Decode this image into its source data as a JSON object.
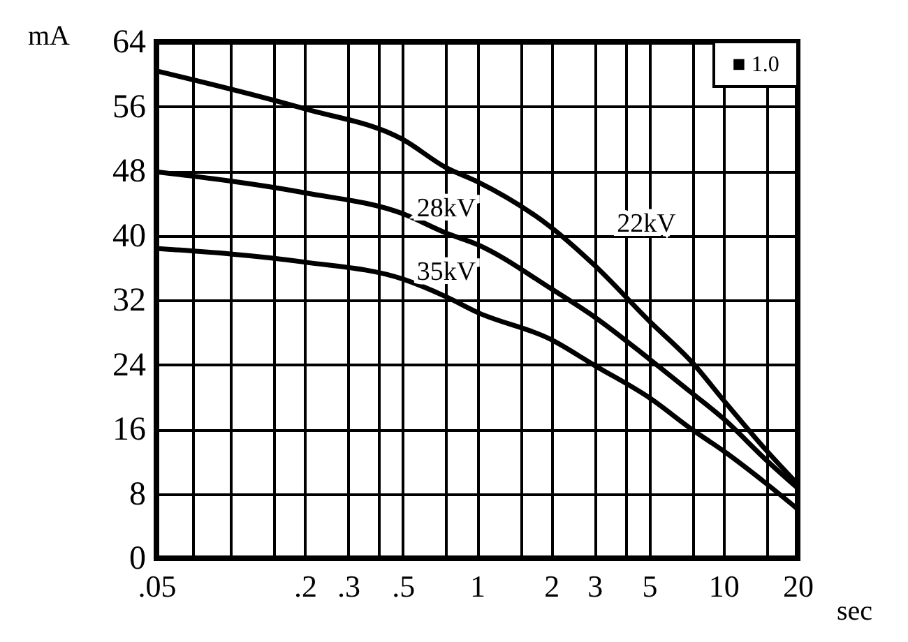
{
  "chart_data": {
    "type": "line",
    "xlabel": "sec",
    "ylabel": "mA",
    "log": "x",
    "grid": true,
    "line_style": "solid",
    "x": [
      0.05,
      0.2,
      0.5,
      0.75,
      1,
      2,
      3,
      5,
      7.5,
      10,
      15,
      20
    ],
    "series": [
      {
        "name": "22kV",
        "color": "#000000",
        "values": [
          60.4,
          55.7,
          51.9,
          48.4,
          46.7,
          41,
          36.3,
          29.4,
          24.2,
          19.6,
          13.3,
          9.2
        ]
      },
      {
        "name": "28kV",
        "color": "#000000",
        "values": [
          47.9,
          45.3,
          42.7,
          40.3,
          38.9,
          33.4,
          29.9,
          24.7,
          20.4,
          17.3,
          12.1,
          8.7
        ]
      },
      {
        "name": "35kV",
        "color": "#000000",
        "values": [
          38.4,
          36.7,
          34.6,
          32.4,
          30.5,
          27.1,
          23.9,
          19.9,
          15.9,
          13.3,
          9.2,
          6.1
        ]
      }
    ],
    "xlim": [
      0.05,
      20
    ],
    "xticks": [
      {
        "value": 0.05,
        "label": ".05"
      },
      {
        "value": 0.07,
        "label": null
      },
      {
        "value": 0.1,
        "label": null
      },
      {
        "value": 0.15,
        "label": null
      },
      {
        "value": 0.2,
        "label": ".2"
      },
      {
        "value": 0.3,
        "label": ".3"
      },
      {
        "value": 0.4,
        "label": null
      },
      {
        "value": 0.5,
        "label": ".5"
      },
      {
        "value": 0.75,
        "label": null
      },
      1,
      {
        "value": 1.5,
        "label": null
      },
      2,
      3,
      {
        "value": 4,
        "label": null
      },
      5,
      {
        "value": 7.5,
        "label": null
      },
      10,
      {
        "value": 15,
        "label": null
      },
      20
    ],
    "ylim": [
      0,
      64
    ],
    "yticks": [
      0,
      8,
      16,
      24,
      32,
      40,
      48,
      56,
      64
    ],
    "annotations": [
      "■ 1.0"
    ]
  }
}
